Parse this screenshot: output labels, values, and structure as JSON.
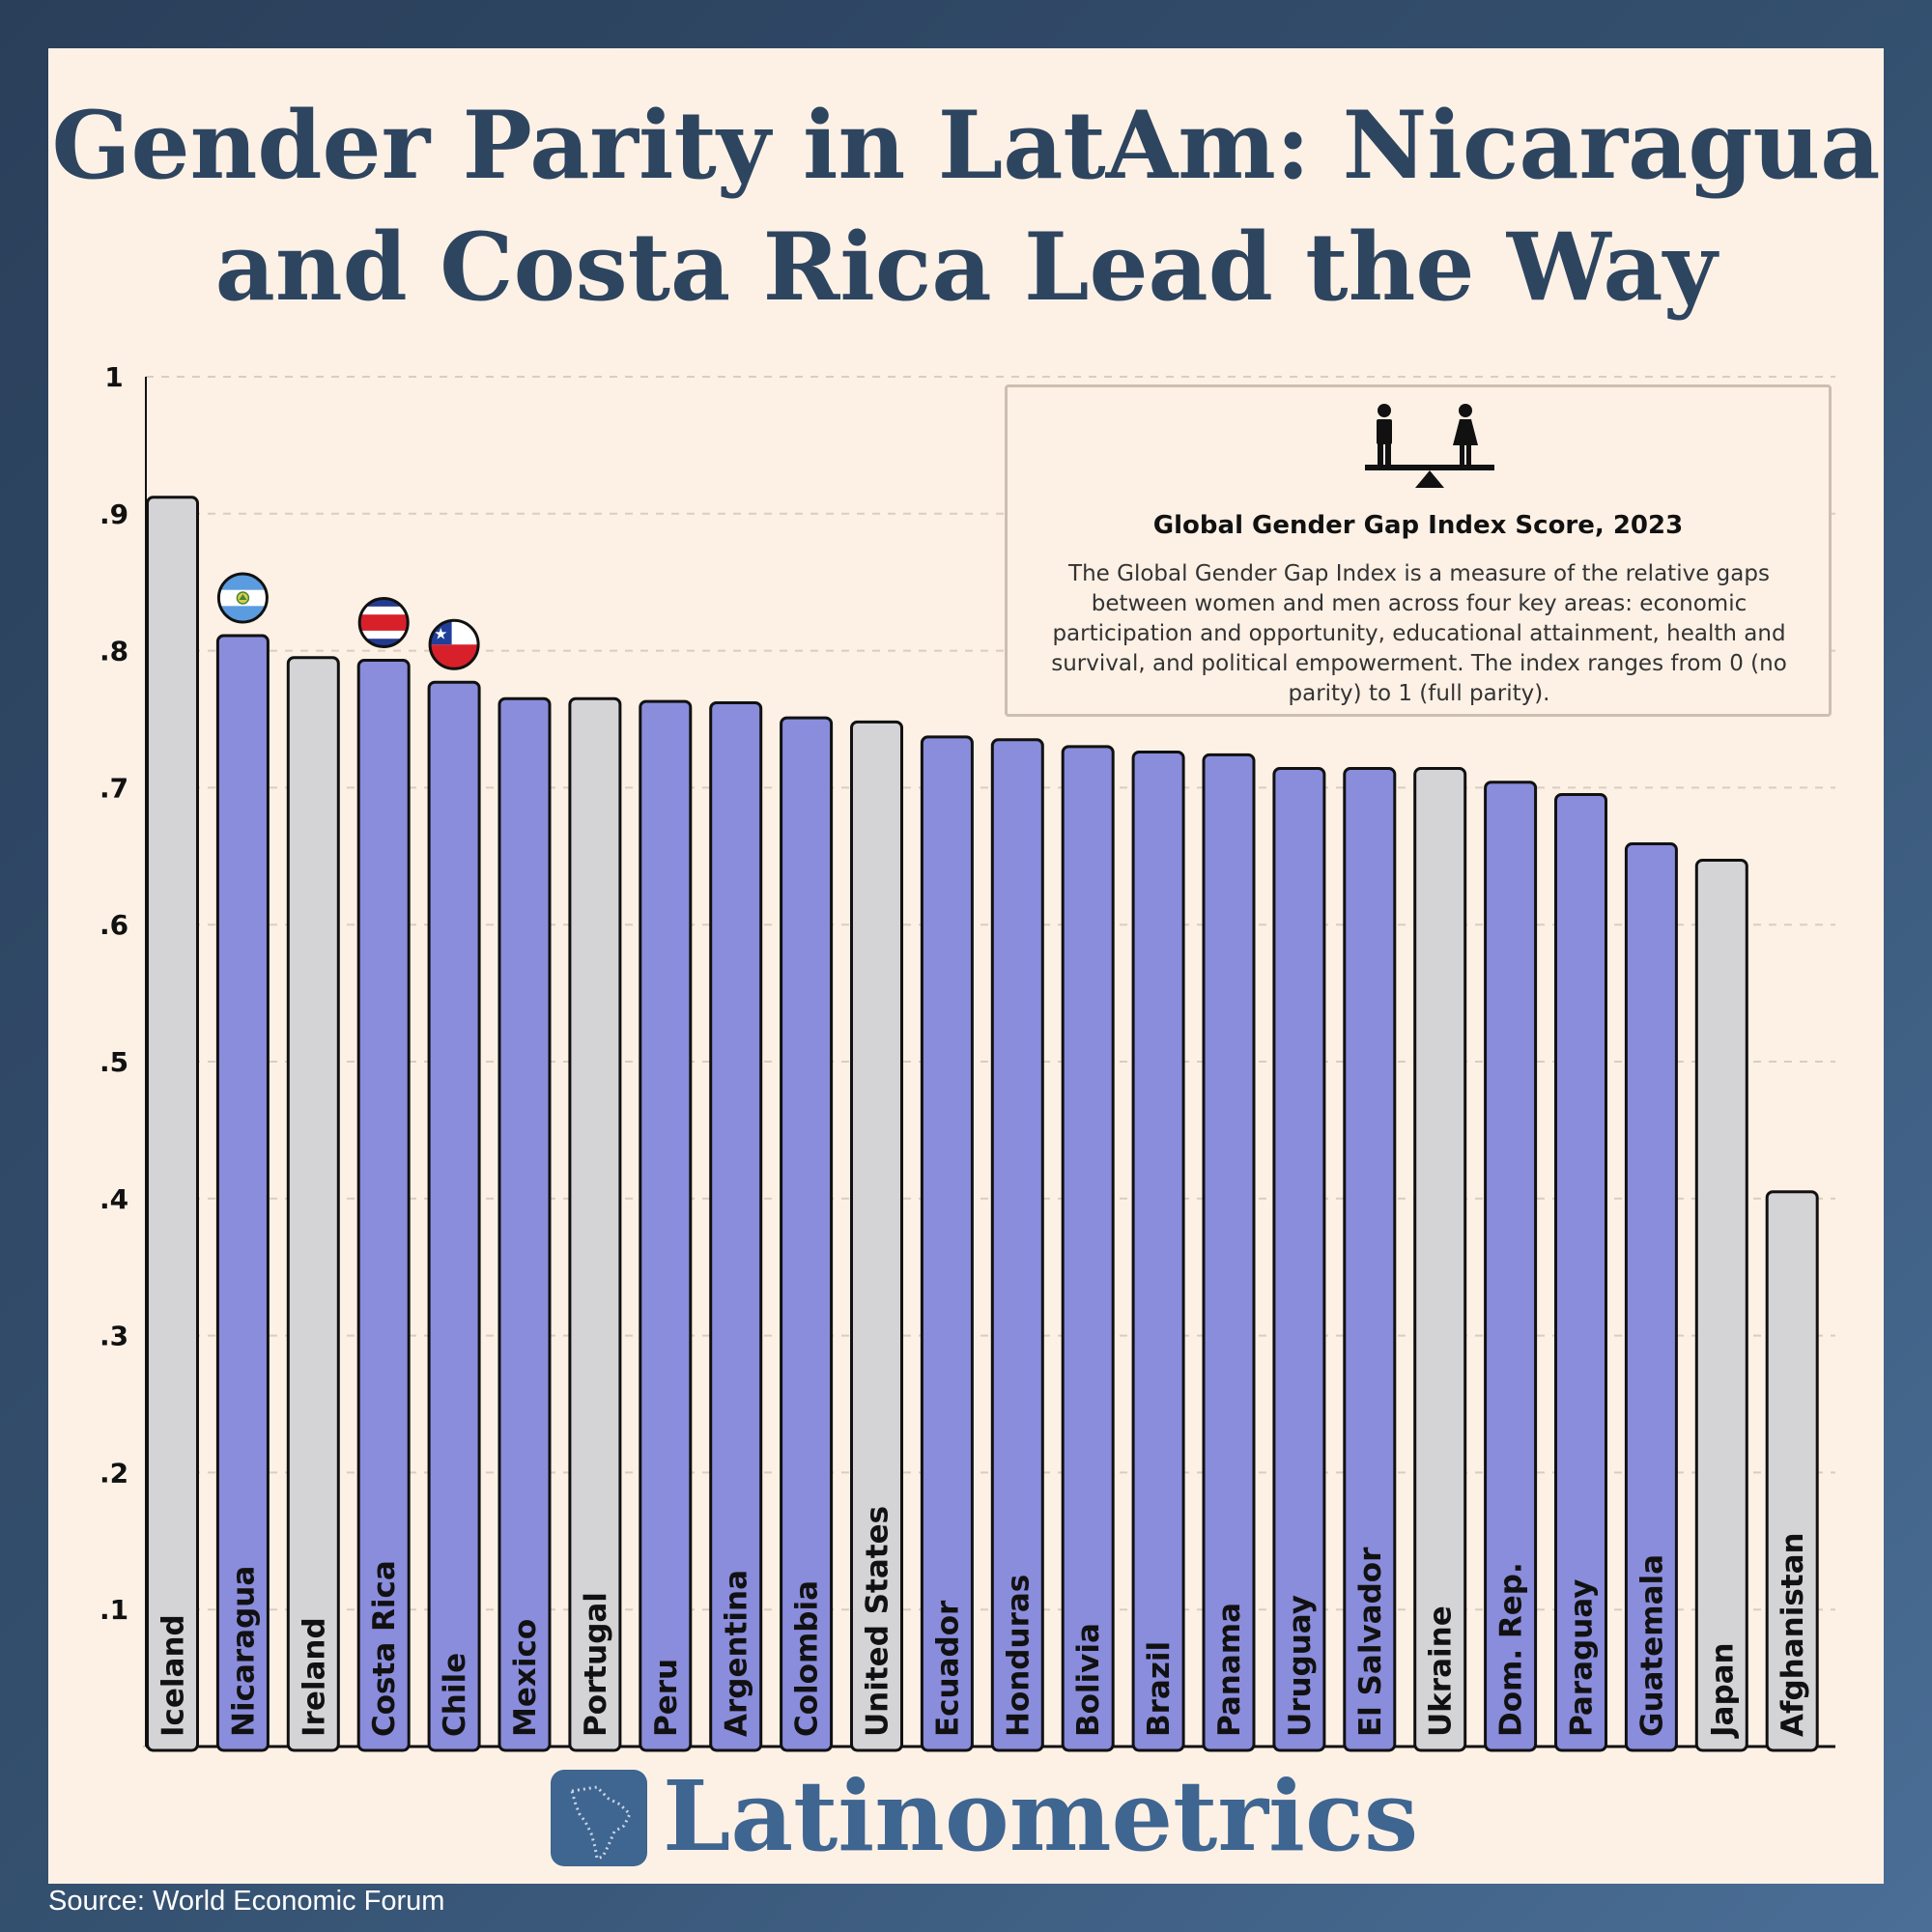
{
  "title": "Gender Parity in LatAm: Nicaragua and Costa Rica Lead the Way",
  "info": {
    "title": "Global Gender Gap Index Score, 2023",
    "description": "The Global Gender Gap Index is a measure of the relative gaps between women and men across four key areas: economic participation and opportunity, educational attainment, health and survival, and political empowerment. The index ranges from 0 (no parity) to 1 (full parity)."
  },
  "brand": "Latinometrics",
  "source": "Source: World Economic Forum",
  "colors": {
    "latam": "#8a8cdc",
    "other": "#d4d4d7",
    "text": "#2e4560",
    "brand": "#3f6591"
  },
  "chart_data": {
    "type": "bar",
    "title": "Global Gender Gap Index Score, 2023",
    "ylim": [
      0,
      1
    ],
    "yticks": [
      "1",
      ".9",
      ".8",
      ".7",
      ".6",
      ".5",
      ".4",
      ".3",
      ".2",
      ".1"
    ],
    "grid": true,
    "categories": [
      "Iceland",
      "Nicaragua",
      "Ireland",
      "Costa Rica",
      "Chile",
      "Mexico",
      "Portugal",
      "Peru",
      "Argentina",
      "Colombia",
      "United States",
      "Ecuador",
      "Honduras",
      "Bolivia",
      "Brazil",
      "Panama",
      "Uruguay",
      "El Salvador",
      "Ukraine",
      "Dom. Rep.",
      "Paraguay",
      "Guatemala",
      "Japan",
      "Afghanistan"
    ],
    "values": [
      0.912,
      0.811,
      0.795,
      0.793,
      0.777,
      0.765,
      0.765,
      0.763,
      0.762,
      0.751,
      0.748,
      0.737,
      0.735,
      0.73,
      0.726,
      0.724,
      0.714,
      0.714,
      0.714,
      0.704,
      0.695,
      0.659,
      0.647,
      0.405
    ],
    "groups": [
      "other",
      "latam",
      "other",
      "latam",
      "latam",
      "latam",
      "other",
      "latam",
      "latam",
      "latam",
      "other",
      "latam",
      "latam",
      "latam",
      "latam",
      "latam",
      "latam",
      "latam",
      "other",
      "latam",
      "latam",
      "latam",
      "other",
      "other"
    ],
    "flags": [
      {
        "country": "Nicaragua",
        "icon": "nicaragua-flag-icon"
      },
      {
        "country": "Costa Rica",
        "icon": "costa-rica-flag-icon"
      },
      {
        "country": "Chile",
        "icon": "chile-flag-icon"
      }
    ]
  }
}
